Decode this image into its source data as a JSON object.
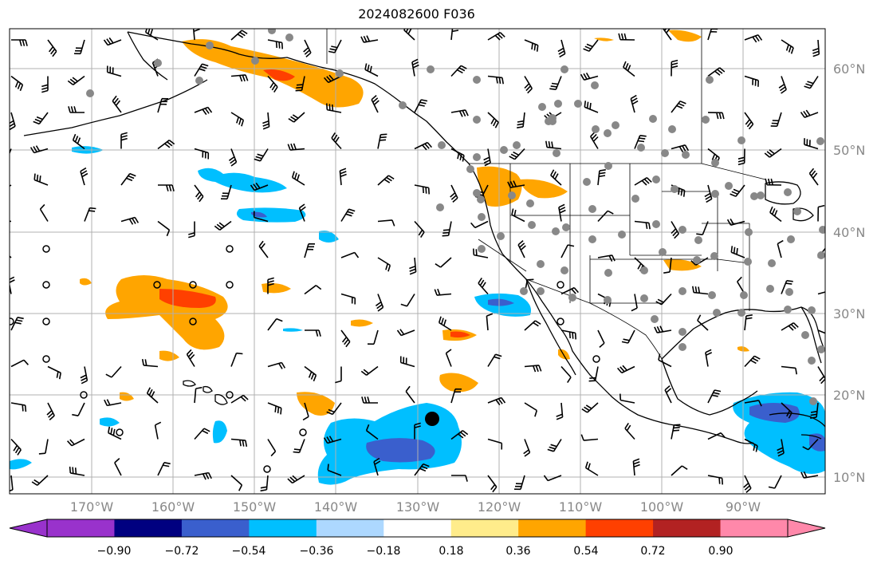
{
  "title": "2024082600 F036",
  "lat_labels": [
    "60°N",
    "50°N",
    "40°N",
    "30°N",
    "20°N",
    "10°N"
  ],
  "lon_labels": [
    "170°W",
    "160°W",
    "150°W",
    "140°W",
    "130°W",
    "120°W",
    "110°W",
    "100°W",
    "90°W"
  ],
  "colorbar": {
    "ticks": [
      "−0.90",
      "−0.72",
      "−0.54",
      "−0.36",
      "−0.18",
      "0.18",
      "0.36",
      "0.54",
      "0.72",
      "0.90"
    ],
    "colors": [
      "#9932cc",
      "#000080",
      "#3a5fcd",
      "#00bfff",
      "#add8ff",
      "#ffffff",
      "#ffec8b",
      "#ffa500",
      "#ff4000",
      "#b22222",
      "#ff88aa"
    ]
  },
  "map": {
    "lon_range": [
      -180,
      -80
    ],
    "lat_range": [
      7,
      64
    ],
    "field_colors": {
      "light_blue": "#add8ff",
      "blue": "#00bfff",
      "mid_blue": "#3a5fcd",
      "yellow": "#ffec8b",
      "orange": "#ffa500",
      "red": "#ff4000"
    },
    "station_color": "#888888",
    "marker": "black dot"
  }
}
